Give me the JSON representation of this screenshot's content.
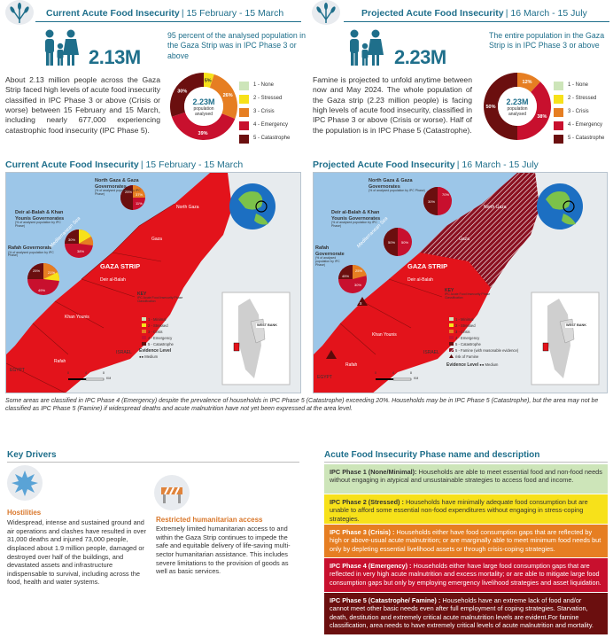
{
  "current": {
    "title": "Current Acute Food Insecurity",
    "date": "15 February - 15 March",
    "number": "2.13M",
    "note": "95 percent of the analysed population in the Gaza Strip was in IPC Phase 3 or above",
    "para": "About 2.13 million people across the Gaza Strip faced high levels of acute food insecurity classified in IPC Phase 3 or above (Crisis or worse) between 15 February and 15 March, including nearly 677,000 experiencing catastrophic food insecurity (IPC Phase 5).",
    "donut_center": "2.23M",
    "donut_sub": "population analysed"
  },
  "projected": {
    "title": "Projected Acute Food Insecurity",
    "date": "16  March - 15 July",
    "number": "2.23M",
    "note": "The entire population in the Gaza Strip is in IPC Phase 3 or above",
    "para": "Famine is projected to unfold anytime between now and May 2024. The whole population of the Gaza strip (2.23 million people) is facing high levels of acute food insecurity, classified in IPC Phase 3 or above (Crisis or worse). Half of the population is in IPC Phase 5 (Catastrophe).",
    "donut_center": "2.23M",
    "donut_sub": "population analysed"
  },
  "legend": [
    "1 - None",
    "2 - Stressed",
    "3 - Crisis",
    "4 - Emergency",
    "5 - Catastrophe"
  ],
  "colors": {
    "p1": "#cde5b9",
    "p2": "#f7e11a",
    "p3": "#e67e22",
    "p4": "#c8102e",
    "p5": "#6b0f0f",
    "accent": "#1f6f8b",
    "orange": "#d9772b"
  },
  "chart_data": [
    {
      "type": "pie",
      "title": "Current Acute Food Insecurity",
      "categories": [
        "1 - None",
        "2 - Stressed",
        "3 - Crisis",
        "4 - Emergency",
        "5 - Catastrophe"
      ],
      "values": [
        0,
        5,
        26,
        39,
        30
      ],
      "labels": [
        "",
        "5%",
        "26%",
        "39%",
        "30%"
      ]
    },
    {
      "type": "pie",
      "title": "Projected Acute Food Insecurity",
      "categories": [
        "1 - None",
        "2 - Stressed",
        "3 - Crisis",
        "4 - Emergency",
        "5 - Catastrophe"
      ],
      "values": [
        0,
        0,
        12,
        38,
        50
      ],
      "labels": [
        "",
        "",
        "12%",
        "38%",
        "50%"
      ]
    }
  ],
  "map_current": {
    "title": "Current Acute Food Insecurity",
    "date": "15 February - 15 March",
    "region1": "North Gaza & Gaza Governorates",
    "region1_sub": "(% of analysed population by IPC Phase)",
    "region2": "Deir al-Balah & Khan Younis Governorates",
    "region2_sub": "(% of analysed population by IPC Phase)",
    "region3": "Rafah Governorate",
    "region3_sub": "(% of analysed population by IPC Phase)",
    "pie1": [
      "25%",
      "37%",
      "11%"
    ],
    "pie2": [
      "30%",
      "38%"
    ],
    "pie3": [
      "49%",
      "25%",
      "21%"
    ],
    "labels": {
      "north_gaza": "North Gaza",
      "gaza": "Gaza",
      "strip": "GAZA STRIP",
      "deir": "Deir al-Balah",
      "khan": "Khan Younis",
      "rafah": "Rafah",
      "israel": "ISRAEL",
      "egypt": "EGYPT",
      "sea": "Mediterranean Sea",
      "west_bank": "WEST BANK"
    },
    "key_title": "KEY",
    "key_sub": "IPC Acute Food Insecurity Phase Classification",
    "key_items": [
      "1 - Minimal",
      "2 - Stressed",
      "3 - Crisis",
      "4 - Emergency",
      "5 - Catastrophe"
    ],
    "evidence": "Evidence Level",
    "evidence_val": "Medium",
    "scale": [
      "0",
      "4",
      "8"
    ],
    "km": "KM"
  },
  "map_projected": {
    "title": "Projected Acute Food Insecurity",
    "date": "16  March - 15 July",
    "region1": "North Gaza & Gaza Governorates",
    "region1_sub": "(% of analysed population by IPC Phase)",
    "region2": "Deir al-Balah & Khan Younis Governorates",
    "region2_sub": "(% of analysed population by IPC Phase)",
    "region3": "Rafah Governorate",
    "region3_sub": "(% of analysed population by IPC Phase)",
    "pie1": [
      "30%",
      "70%"
    ],
    "pie2": [
      "50%",
      "50%"
    ],
    "pie3": [
      "45%",
      "25%",
      "30%"
    ],
    "labels": {
      "north_gaza": "North Gaza",
      "gaza": "Gaza",
      "strip": "GAZA STRIP",
      "deir": "Deir al-Balah",
      "khan": "Khan Younis",
      "rafah": "Rafah",
      "israel": "ISRAEL",
      "egypt": "EGYPT",
      "sea": "Mediterranean Sea",
      "west_bank": "WEST BANK"
    },
    "key_title": "KEY",
    "key_sub": "IPC Acute Food Insecurity Phase Classification",
    "key_items": [
      "1 - Minimal",
      "2 - Stressed",
      "3 - Crisis",
      "4 - Emergency",
      "5 - Catastrophe",
      "5 - Famine (with reasonable evidence)",
      "risk of Famine"
    ],
    "evidence": "Evidence Level",
    "evidence_val": "Medium",
    "scale": [
      "0",
      "4",
      "8"
    ],
    "km": "KM"
  },
  "footnote": "Some  areas are classified in IPC Phase 4 (Emergency) despite the prevalence of households in IPC Phase 5 (Catastrophe) exceeding 20%. Households may be in IPC Phase 5 (Catastrophe), but the area may not be classified as IPC Phase 5 (Famine) if widespread deaths and acute malnutrition have not yet been expressed at the area level.",
  "drivers": {
    "title": "Key Drivers",
    "d1_title": "Hostilities",
    "d1_text": "Widespread, intense and sustained ground and air operations and clashes have resulted in over 31,000 deaths and injured 73,000 people, displaced about 1.9 million people, damaged or destroyed over half of the buildings, and devastated assets and infrastructure indispensable to survival, including across the food, health and water systems.",
    "d2_title": "Restricted humanitarian access",
    "d2_text": "Extremely limited humanitarian access to and within the Gaza Strip continues to impede the safe and equitable delivery of life-saving multi-sector humanitarian assistance. This includes severe limitations to the provision of goods as well as basic services."
  },
  "phases": {
    "title": "Acute Food Insecurity Phase name and description",
    "items": [
      {
        "name": "IPC Phase 1 (None/Minimal):",
        "text": "Households are able to meet essential food and non-food needs without engaging in atypical and unsustainable strategies to access food and income."
      },
      {
        "name": "IPC Phase 2 (Stressed) :",
        "text": "Households have minimally adequate food consumption but are unable to afford some essential non-food expenditures without engaging in stress-coping strategies."
      },
      {
        "name": "IPC Phase 3 (Crisis) :",
        "text": "Households either have food consumption gaps that are reflected by high or above-usual acute malnutrition; or are marginally able to meet minimum food needs but only by depleting essential livelihood assets or through crisis-coping strategies."
      },
      {
        "name": "IPC Phase 4 (Emergency) :",
        "text": "Households either have large food consumption gaps that are reflected in very high acute malnutrition and excess mortality; or are able to mitigate large food consumption gaps but only by employing emergency livelihood strategies and asset liquidation."
      },
      {
        "name": "IPC Phase 5 (Catastrophe/ Famine) :",
        "text": "Households have an extreme lack of food and/or cannot meet other basic needs even after full employment of coping strategies. Starvation, death, destitution and extremely critical acute malnutrition levels are evident.For famine classification, area needs to have extremely critical levels of acute malnutrition and mortality."
      }
    ]
  }
}
